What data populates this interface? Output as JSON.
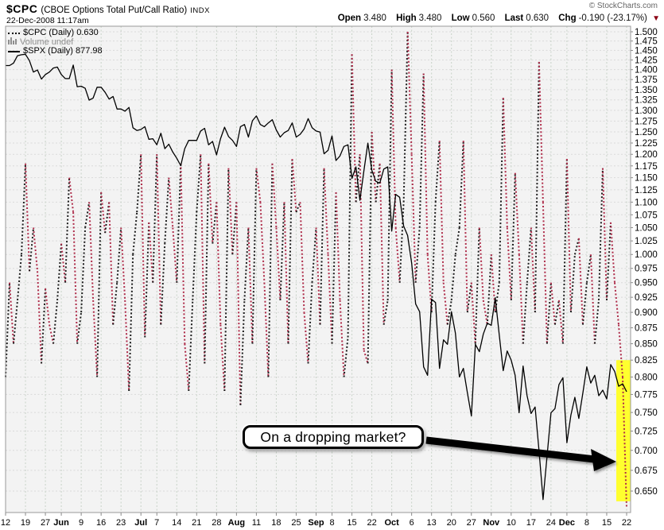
{
  "header": {
    "symbol": "$CPC",
    "name": "(CBOE Options Total Put/Call Ratio)",
    "exchange": "INDX",
    "datetime": "22-Dec-2008 11:17am",
    "copyright": "© StockCharts.com",
    "quote": {
      "open_label": "Open",
      "open": "3.480",
      "high_label": "High",
      "high": "3.480",
      "low_label": "Low",
      "low": "0.560",
      "last_label": "Last",
      "last": "0.630",
      "chg_label": "Chg",
      "chg": "-0.190 (-23.17%)",
      "direction_icon": "▼",
      "direction_color": "#8b0013"
    }
  },
  "legend": {
    "cpc": "$CPC (Daily) 0.630",
    "volume": "Volume undef",
    "spx": "$SPX (Daily) 877.98"
  },
  "annotation": {
    "text": "On a dropping market?"
  },
  "chart_data": {
    "type": "line",
    "title": "$CPC (CBOE Options Total Put/Call Ratio) INDX",
    "y_axis": {
      "scale": "log",
      "side": "right",
      "ticks": [
        "1.500",
        "1.475",
        "1.450",
        "1.425",
        "1.400",
        "1.375",
        "1.350",
        "1.325",
        "1.300",
        "1.275",
        "1.250",
        "1.225",
        "1.200",
        "1.175",
        "1.150",
        "1.125",
        "1.100",
        "1.075",
        "1.050",
        "1.025",
        "1.000",
        "0.975",
        "0.950",
        "0.925",
        "0.900",
        "0.875",
        "0.850",
        "0.825",
        "0.800",
        "0.775",
        "0.750",
        "0.725",
        "0.700",
        "0.675",
        "0.650"
      ],
      "range": [
        0.63,
        1.5
      ]
    },
    "x_axis": {
      "period": "May 12 2008 - Dec 22 2008, daily",
      "ticks": [
        {
          "l": "12",
          "i": 0
        },
        {
          "l": "19",
          "i": 5
        },
        {
          "l": "27",
          "i": 10
        },
        {
          "l": "Jun",
          "i": 14,
          "b": 1
        },
        {
          "l": "9",
          "i": 19
        },
        {
          "l": "16",
          "i": 24
        },
        {
          "l": "23",
          "i": 29
        },
        {
          "l": "Jul",
          "i": 34,
          "b": 1
        },
        {
          "l": "7",
          "i": 38
        },
        {
          "l": "14",
          "i": 43
        },
        {
          "l": "21",
          "i": 48
        },
        {
          "l": "28",
          "i": 53
        },
        {
          "l": "Aug",
          "i": 58,
          "b": 1
        },
        {
          "l": "11",
          "i": 63
        },
        {
          "l": "18",
          "i": 68
        },
        {
          "l": "25",
          "i": 73
        },
        {
          "l": "Sep",
          "i": 78,
          "b": 1
        },
        {
          "l": "8",
          "i": 82
        },
        {
          "l": "15",
          "i": 87
        },
        {
          "l": "22",
          "i": 92
        },
        {
          "l": "Oct",
          "i": 97,
          "b": 1
        },
        {
          "l": "6",
          "i": 102
        },
        {
          "l": "13",
          "i": 107
        },
        {
          "l": "20",
          "i": 112
        },
        {
          "l": "27",
          "i": 117
        },
        {
          "l": "Nov",
          "i": 122,
          "b": 1
        },
        {
          "l": "10",
          "i": 127
        },
        {
          "l": "17",
          "i": 132
        },
        {
          "l": "24",
          "i": 137
        },
        {
          "l": "Dec",
          "i": 141,
          "b": 1
        },
        {
          "l": "8",
          "i": 146
        },
        {
          "l": "15",
          "i": 151
        },
        {
          "l": "22",
          "i": 156
        }
      ]
    },
    "series": [
      {
        "name": "$CPC (Daily)",
        "last": 0.63,
        "style": "dotted",
        "color_up": "#1c1c1c",
        "color_down": "#ae2b49",
        "values": [
          0.8,
          0.95,
          0.85,
          0.92,
          1.0,
          1.18,
          0.97,
          1.05,
          0.97,
          0.82,
          0.94,
          0.88,
          0.85,
          0.92,
          1.02,
          0.95,
          1.15,
          1.08,
          0.85,
          0.9,
          1.05,
          1.1,
          0.92,
          0.8,
          1.12,
          1.04,
          1.1,
          0.88,
          0.95,
          1.05,
          0.92,
          0.78,
          1.0,
          1.08,
          1.2,
          0.86,
          1.06,
          0.95,
          1.2,
          0.88,
          1.02,
          1.15,
          1.05,
          0.95,
          1.18,
          0.85,
          0.78,
          0.92,
          1.08,
          1.2,
          0.82,
          1.18,
          1.02,
          1.1,
          0.88,
          0.78,
          1.17,
          1.0,
          1.1,
          0.76,
          0.92,
          1.05,
          0.85,
          1.17,
          1.1,
          0.95,
          0.8,
          1.18,
          1.05,
          0.92,
          1.1,
          0.85,
          1.19,
          1.08,
          1.1,
          0.9,
          0.82,
          0.95,
          1.05,
          0.88,
          1.17,
          1.0,
          0.85,
          1.12,
          0.92,
          0.8,
          0.86,
          1.44,
          1.1,
          1.2,
          0.84,
          0.82,
          1.25,
          1.1,
          1.18,
          0.88,
          0.92,
          1.4,
          1.05,
          0.95,
          1.1,
          1.5,
          1.2,
          0.95,
          1.05,
          1.39,
          1.0,
          0.9,
          1.1,
          1.23,
          0.95,
          0.88,
          0.92,
          1.0,
          1.05,
          1.23,
          0.9,
          0.95,
          0.85,
          1.05,
          0.92,
          0.88,
          1.0,
          0.9,
          0.95,
          1.33,
          1.05,
          0.92,
          1.16,
          1.0,
          0.85,
          0.95,
          1.05,
          0.9,
          1.42,
          1.1,
          0.85,
          0.95,
          0.88,
          0.92,
          0.85,
          1.19,
          0.9,
          1.0,
          1.03,
          0.88,
          0.95,
          1.0,
          0.85,
          0.92,
          1.17,
          0.92,
          1.06,
          0.95,
          0.88,
          0.8,
          0.63
        ]
      },
      {
        "name": "$SPX (Daily)",
        "last": 877.98,
        "style": "solid",
        "color": "#000000",
        "note": "overlaid on hidden price scale",
        "values": [
          1403,
          1403,
          1408,
          1423,
          1425,
          1426,
          1413,
          1390,
          1394,
          1376,
          1385,
          1390,
          1398,
          1400,
          1385,
          1377,
          1377,
          1404,
          1361,
          1362,
          1358,
          1335,
          1339,
          1360,
          1360,
          1350,
          1337,
          1342,
          1318,
          1318,
          1314,
          1321,
          1283,
          1278,
          1280,
          1285,
          1262,
          1263,
          1252,
          1273,
          1245,
          1253,
          1239,
          1228,
          1215,
          1245,
          1260,
          1260,
          1260,
          1277,
          1282,
          1252,
          1258,
          1234,
          1263,
          1284,
          1267,
          1260,
          1249,
          1285,
          1289,
          1266,
          1296,
          1305,
          1289,
          1285,
          1292,
          1298,
          1279,
          1266,
          1274,
          1278,
          1292,
          1266,
          1271,
          1281,
          1300,
          1283,
          1277,
          1275,
          1236,
          1242,
          1268,
          1224,
          1232,
          1249,
          1252,
          1193,
          1213,
          1156,
          1206,
          1255,
          1207,
          1188,
          1185,
          1209,
          1213,
          1106,
          1166,
          1161,
          1114,
          1099,
          1056,
          996,
          985,
          910,
          899,
          1003,
          998,
          908,
          946,
          940,
          985,
          955,
          897,
          908,
          877,
          848,
          940,
          930,
          954,
          969,
          966,
          1005,
          953,
          905,
          931,
          919,
          899,
          852,
          911,
          873,
          851,
          859,
          806,
          752,
          800,
          852,
          857,
          887,
          896,
          816,
          849,
          871,
          845,
          876,
          910,
          889,
          899,
          873,
          880,
          869,
          913,
          904,
          885,
          888,
          878
        ]
      }
    ],
    "highlight_band": {
      "color": "#ffff2e",
      "from_index": 153.4,
      "y_top": 0.825,
      "y_bottom": 0.638
    },
    "plot_bg": "#f3f3f3",
    "border_color": "#9a9a9a",
    "grid_h_color": "#d9d9d9",
    "grid_v_color": "#c7d2c7",
    "tick_color": "#8a8a8a",
    "legend_position": "top-left",
    "grid": true
  }
}
